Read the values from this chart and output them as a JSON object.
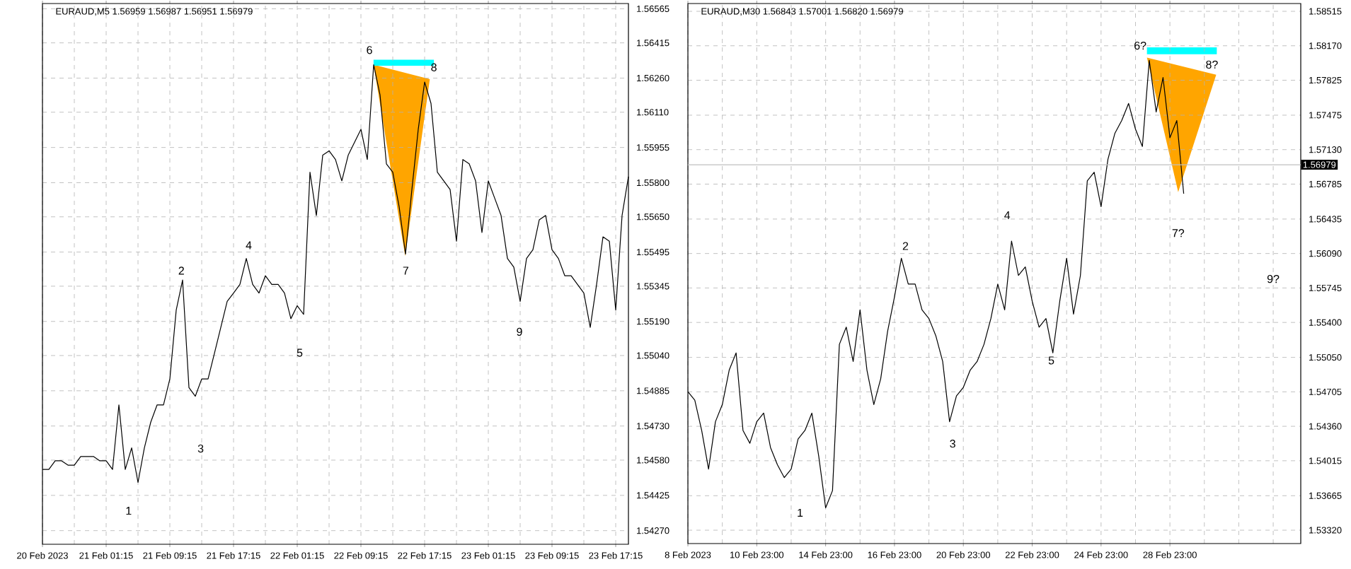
{
  "chart_data": [
    {
      "type": "line",
      "title": "EURAUD,M5  1.56959 1.56987 1.56951 1.56979",
      "grid": true,
      "marker": "none",
      "categories": [
        "20 Feb 2023",
        null,
        null,
        null,
        null,
        null,
        null,
        null,
        null,
        null,
        "21 Feb 01:15",
        null,
        null,
        null,
        null,
        null,
        null,
        null,
        null,
        null,
        "21 Feb 09:15",
        null,
        null,
        null,
        null,
        null,
        null,
        null,
        null,
        null,
        "21 Feb 17:15",
        null,
        null,
        null,
        null,
        null,
        null,
        null,
        null,
        null,
        "22 Feb 01:15",
        null,
        null,
        null,
        null,
        null,
        null,
        null,
        null,
        null,
        "22 Feb 09:15",
        null,
        null,
        null,
        null,
        null,
        null,
        null,
        null,
        null,
        "22 Feb 17:15",
        null,
        null,
        null,
        null,
        null,
        null,
        null,
        null,
        null,
        "23 Feb 01:15",
        null,
        null,
        null,
        null,
        null,
        null,
        null,
        null,
        null,
        "23 Feb 09:15",
        null,
        null,
        null,
        null,
        null,
        null,
        null,
        null,
        null,
        "23 Feb 17:15",
        null,
        null
      ],
      "ylim": [
        1.5421,
        1.56588
      ],
      "yticks": [
        {
          "value": 1.5427,
          "label": "1.54270"
        },
        {
          "value": 1.54425,
          "label": "1.54425"
        },
        {
          "value": 1.5458,
          "label": "1.54580"
        },
        {
          "value": 1.5473,
          "label": "1.54730"
        },
        {
          "value": 1.54885,
          "label": "1.54885"
        },
        {
          "value": 1.5504,
          "label": "1.55040"
        },
        {
          "value": 1.5519,
          "label": "1.55190"
        },
        {
          "value": 1.55345,
          "label": "1.55345"
        },
        {
          "value": 1.55495,
          "label": "1.55495"
        },
        {
          "value": 1.5565,
          "label": "1.55650"
        },
        {
          "value": 1.558,
          "label": "1.55800"
        },
        {
          "value": 1.55955,
          "label": "1.55955"
        },
        {
          "value": 1.5611,
          "label": "1.56110"
        },
        {
          "value": 1.5626,
          "label": "1.56260"
        },
        {
          "value": 1.56415,
          "label": "1.56415"
        },
        {
          "value": 1.56565,
          "label": "1.56565"
        }
      ],
      "series": [
        {
          "color": "#000000",
          "values": [
            1.54539,
            1.54539,
            1.54577,
            1.54577,
            1.54558,
            1.54558,
            1.54596,
            1.54596,
            1.54596,
            1.54577,
            1.54577,
            1.54539,
            1.54823,
            1.54539,
            1.54634,
            1.54482,
            1.54634,
            1.54747,
            1.54823,
            1.54823,
            1.54937,
            1.5524,
            1.55372,
            1.54899,
            1.54861,
            1.54937,
            1.54937,
            1.5505,
            1.55164,
            1.55278,
            1.55315,
            1.55353,
            1.55467,
            1.55353,
            1.55315,
            1.55391,
            1.55353,
            1.55353,
            1.55315,
            1.55202,
            1.55259,
            1.55221,
            1.55846,
            1.55656,
            1.55921,
            1.5594,
            1.55902,
            1.55808,
            1.55921,
            1.55978,
            1.56035,
            1.55902,
            1.56319,
            1.56186,
            1.55883,
            1.55846,
            1.55694,
            1.55486,
            1.5577,
            1.56035,
            1.56243,
            1.56149,
            1.55846,
            1.55808,
            1.5577,
            1.55543,
            1.55902,
            1.55883,
            1.55808,
            1.55581,
            1.55808,
            1.55732,
            1.55656,
            1.55467,
            1.55429,
            1.55278,
            1.55467,
            1.55505,
            1.55637,
            1.55656,
            1.55505,
            1.55467,
            1.55391,
            1.55391,
            1.55353,
            1.55315,
            1.55164,
            1.55353,
            1.55562,
            1.55543,
            1.5524,
            1.55656,
            1.55827
          ]
        }
      ],
      "annotations": [
        "1",
        "2",
        "3",
        "4",
        "5",
        "6",
        "7",
        "8",
        "9"
      ]
    },
    {
      "type": "line",
      "title": "EURAUD,M30  1.56843 1.57001 1.56820 1.56979",
      "grid": true,
      "marker": "none",
      "categories": [
        "8 Feb 2023",
        null,
        null,
        null,
        null,
        null,
        null,
        null,
        null,
        null,
        "10 Feb 23:00",
        null,
        null,
        null,
        null,
        null,
        null,
        null,
        null,
        null,
        "14 Feb 23:00",
        null,
        null,
        null,
        null,
        null,
        null,
        null,
        null,
        null,
        "16 Feb 23:00",
        null,
        null,
        null,
        null,
        null,
        null,
        null,
        null,
        null,
        "20 Feb 23:00",
        null,
        null,
        null,
        null,
        null,
        null,
        null,
        null,
        null,
        "22 Feb 23:00",
        null,
        null,
        null,
        null,
        null,
        null,
        null,
        null,
        null,
        "24 Feb 23:00",
        null,
        null,
        null,
        null,
        null,
        null,
        null,
        null,
        null,
        "28 Feb 23:00",
        null,
        null,
        null,
        null,
        null,
        null,
        null,
        null,
        null,
        null,
        null,
        null,
        null,
        null,
        null,
        null,
        null,
        null,
        null
      ],
      "ylim": [
        1.53186,
        1.58593
      ],
      "yticks": [
        {
          "value": 1.5332,
          "label": "1.53320"
        },
        {
          "value": 1.53665,
          "label": "1.53665"
        },
        {
          "value": 1.54015,
          "label": "1.54015"
        },
        {
          "value": 1.5436,
          "label": "1.54360"
        },
        {
          "value": 1.54705,
          "label": "1.54705"
        },
        {
          "value": 1.5505,
          "label": "1.55050"
        },
        {
          "value": 1.554,
          "label": "1.55400"
        },
        {
          "value": 1.55745,
          "label": "1.55745"
        },
        {
          "value": 1.5609,
          "label": "1.56090"
        },
        {
          "value": 1.56435,
          "label": "1.56435"
        },
        {
          "value": 1.56785,
          "label": "1.56785"
        },
        {
          "value": 1.5713,
          "label": "1.57130"
        },
        {
          "value": 1.57475,
          "label": "1.57475"
        },
        {
          "value": 1.57825,
          "label": "1.57825"
        },
        {
          "value": 1.5817,
          "label": "1.58170"
        },
        {
          "value": 1.58515,
          "label": "1.58515"
        }
      ],
      "ref_lines": [
        {
          "axis": "y",
          "value": 1.56979,
          "label": "1.56979",
          "color": "#c0c0c0"
        }
      ],
      "series": [
        {
          "color": "#000000",
          "values": [
            1.54707,
            1.54621,
            1.54319,
            1.53932,
            1.54406,
            1.54578,
            1.54923,
            1.55095,
            1.54319,
            1.5419,
            1.54406,
            1.54492,
            1.54147,
            1.53975,
            1.53846,
            1.53932,
            1.54233,
            1.54319,
            1.54492,
            1.54061,
            1.53544,
            1.53716,
            1.55181,
            1.55353,
            1.55009,
            1.55526,
            1.54923,
            1.54578,
            1.54836,
            1.5531,
            1.55655,
            1.56042,
            1.55784,
            1.55784,
            1.55526,
            1.55439,
            1.55267,
            1.55009,
            1.54406,
            1.54664,
            1.5475,
            1.54923,
            1.55009,
            1.55181,
            1.55439,
            1.55784,
            1.55526,
            1.56215,
            1.5587,
            1.55956,
            1.55612,
            1.55353,
            1.55439,
            1.55095,
            1.55612,
            1.56042,
            1.55483,
            1.5587,
            1.56818,
            1.56904,
            1.56559,
            1.57033,
            1.57292,
            1.57421,
            1.57593,
            1.57335,
            1.57162,
            1.58024,
            1.57507,
            1.57852,
            1.57249,
            1.57421,
            1.56689,
            null,
            null,
            null,
            null,
            null,
            null,
            null,
            null,
            null,
            null,
            null,
            null,
            null,
            null,
            null,
            null,
            null
          ]
        }
      ],
      "annotations": [
        "1",
        "2",
        "3",
        "4",
        "5",
        "6?",
        "7?",
        "8?",
        "9?"
      ]
    }
  ]
}
